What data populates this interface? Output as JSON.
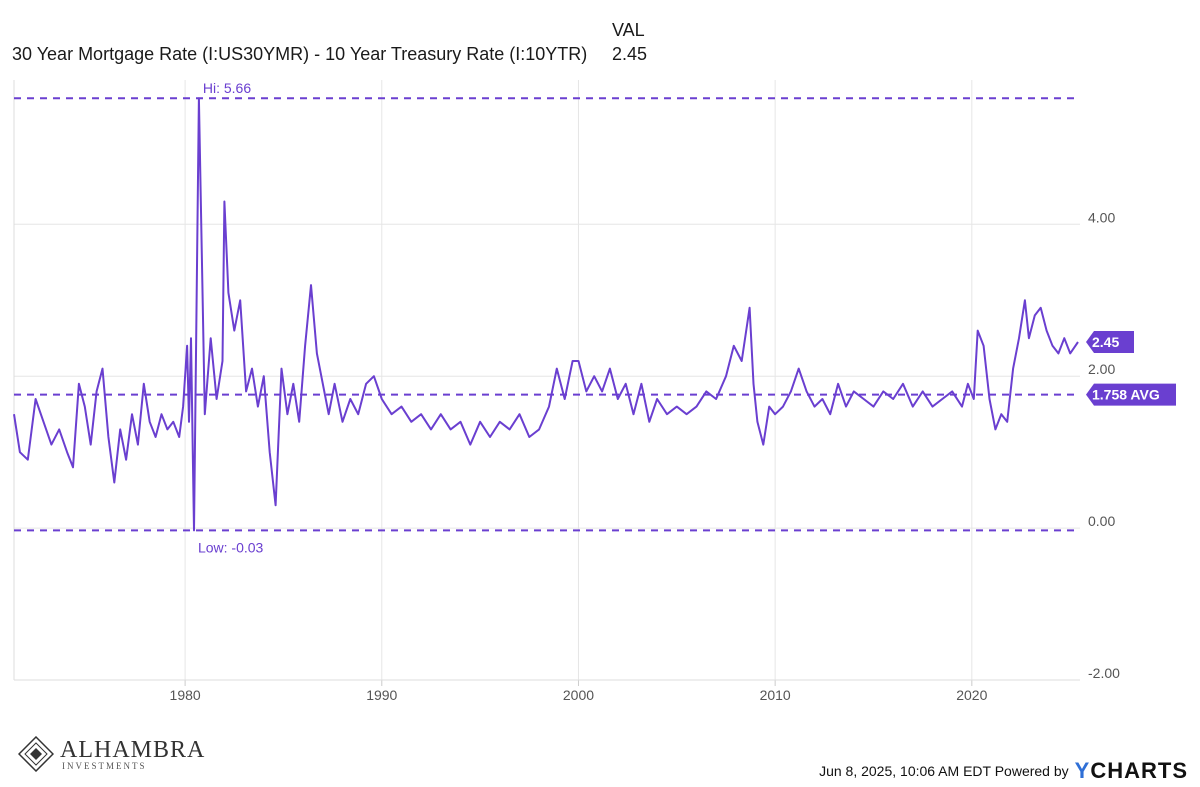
{
  "legend": {
    "col_header": "VAL",
    "series_label": "30 Year Mortgage Rate (I:US30YMR) - 10 Year Treasury Rate (I:10YTR)",
    "series_value": "2.45"
  },
  "annotations": {
    "high": "Hi: 5.66",
    "low": "Low: -0.03",
    "current_badge": "2.45",
    "avg_badge": "1.758 AVG"
  },
  "footer": {
    "logo_main": "ALHAMBRA",
    "logo_sub": "INVESTMENTS",
    "timestamp": "Jun 8, 2025, 10:06 AM EDT Powered by",
    "brand_y": "Y",
    "brand_rest": "CHARTS"
  },
  "colors": {
    "series": "#6a3fd0",
    "grid": "#e6e6e6",
    "axis_text": "#555555"
  },
  "chart_data": {
    "type": "line",
    "title": "",
    "xlabel": "",
    "ylabel": "",
    "xlim": [
      1971.3,
      2025.5
    ],
    "ylim": [
      -2.0,
      5.9
    ],
    "x_ticks": [
      1980,
      1990,
      2000,
      2010,
      2020
    ],
    "x_tick_labels": [
      "1980",
      "1990",
      "2000",
      "2010",
      "2020"
    ],
    "y_ticks": [
      4.0,
      2.0,
      0.0,
      -2.0
    ],
    "y_tick_labels": [
      "4.00",
      "2.00",
      "0.00",
      "-2.00"
    ],
    "grid": true,
    "y_axis_side": "right",
    "high": 5.66,
    "low": -0.03,
    "average": 1.758,
    "current": 2.45,
    "series": [
      {
        "name": "30 Year Mortgage Rate (I:US30YMR) - 10 Year Treasury Rate (I:10YTR)",
        "x": [
          1971.3,
          1971.6,
          1972.0,
          1972.4,
          1972.8,
          1973.2,
          1973.6,
          1974.0,
          1974.3,
          1974.6,
          1974.9,
          1975.2,
          1975.5,
          1975.8,
          1976.1,
          1976.4,
          1976.7,
          1977.0,
          1977.3,
          1977.6,
          1977.9,
          1978.2,
          1978.5,
          1978.8,
          1979.1,
          1979.4,
          1979.7,
          1979.9,
          1980.1,
          1980.2,
          1980.3,
          1980.45,
          1980.7,
          1981.0,
          1981.3,
          1981.6,
          1981.9,
          1982.0,
          1982.2,
          1982.5,
          1982.8,
          1983.1,
          1983.4,
          1983.7,
          1984.0,
          1984.3,
          1984.6,
          1984.9,
          1985.2,
          1985.5,
          1985.8,
          1986.1,
          1986.4,
          1986.7,
          1987.0,
          1987.3,
          1987.6,
          1988.0,
          1988.4,
          1988.8,
          1989.2,
          1989.6,
          1990.0,
          1990.5,
          1991.0,
          1991.5,
          1992.0,
          1992.5,
          1993.0,
          1993.5,
          1994.0,
          1994.5,
          1995.0,
          1995.5,
          1996.0,
          1996.5,
          1997.0,
          1997.5,
          1998.0,
          1998.5,
          1998.9,
          1999.3,
          1999.7,
          2000.0,
          2000.4,
          2000.8,
          2001.2,
          2001.6,
          2002.0,
          2002.4,
          2002.8,
          2003.2,
          2003.6,
          2004.0,
          2004.5,
          2005.0,
          2005.5,
          2006.0,
          2006.5,
          2007.0,
          2007.5,
          2007.9,
          2008.3,
          2008.7,
          2008.9,
          2009.1,
          2009.4,
          2009.7,
          2010.0,
          2010.4,
          2010.8,
          2011.2,
          2011.6,
          2012.0,
          2012.4,
          2012.8,
          2013.2,
          2013.6,
          2014.0,
          2014.5,
          2015.0,
          2015.5,
          2016.0,
          2016.5,
          2017.0,
          2017.5,
          2018.0,
          2018.5,
          2019.0,
          2019.5,
          2019.8,
          2020.1,
          2020.3,
          2020.6,
          2020.9,
          2021.2,
          2021.5,
          2021.8,
          2022.1,
          2022.4,
          2022.7,
          2022.9,
          2023.2,
          2023.5,
          2023.8,
          2024.1,
          2024.4,
          2024.7,
          2025.0,
          2025.4
        ],
        "y": [
          1.5,
          1.0,
          0.9,
          1.7,
          1.4,
          1.1,
          1.3,
          1.0,
          0.8,
          1.9,
          1.6,
          1.1,
          1.8,
          2.1,
          1.2,
          0.6,
          1.3,
          0.9,
          1.5,
          1.1,
          1.9,
          1.4,
          1.2,
          1.5,
          1.3,
          1.4,
          1.2,
          1.6,
          2.4,
          1.4,
          2.5,
          -0.03,
          5.66,
          1.5,
          2.5,
          1.7,
          2.2,
          4.3,
          3.1,
          2.6,
          3.0,
          1.8,
          2.1,
          1.6,
          2.0,
          1.0,
          0.3,
          2.1,
          1.5,
          1.9,
          1.4,
          2.4,
          3.2,
          2.3,
          1.9,
          1.5,
          1.9,
          1.4,
          1.7,
          1.5,
          1.9,
          2.0,
          1.7,
          1.5,
          1.6,
          1.4,
          1.5,
          1.3,
          1.5,
          1.3,
          1.4,
          1.1,
          1.4,
          1.2,
          1.4,
          1.3,
          1.5,
          1.2,
          1.3,
          1.6,
          2.1,
          1.7,
          2.2,
          2.2,
          1.8,
          2.0,
          1.8,
          2.1,
          1.7,
          1.9,
          1.5,
          1.9,
          1.4,
          1.7,
          1.5,
          1.6,
          1.5,
          1.6,
          1.8,
          1.7,
          2.0,
          2.4,
          2.2,
          2.9,
          1.9,
          1.4,
          1.1,
          1.6,
          1.5,
          1.6,
          1.8,
          2.1,
          1.8,
          1.6,
          1.7,
          1.5,
          1.9,
          1.6,
          1.8,
          1.7,
          1.6,
          1.8,
          1.7,
          1.9,
          1.6,
          1.8,
          1.6,
          1.7,
          1.8,
          1.6,
          1.9,
          1.7,
          2.6,
          2.4,
          1.7,
          1.3,
          1.5,
          1.4,
          2.1,
          2.5,
          3.0,
          2.5,
          2.8,
          2.9,
          2.6,
          2.4,
          2.3,
          2.5,
          2.3,
          2.45
        ]
      }
    ]
  }
}
